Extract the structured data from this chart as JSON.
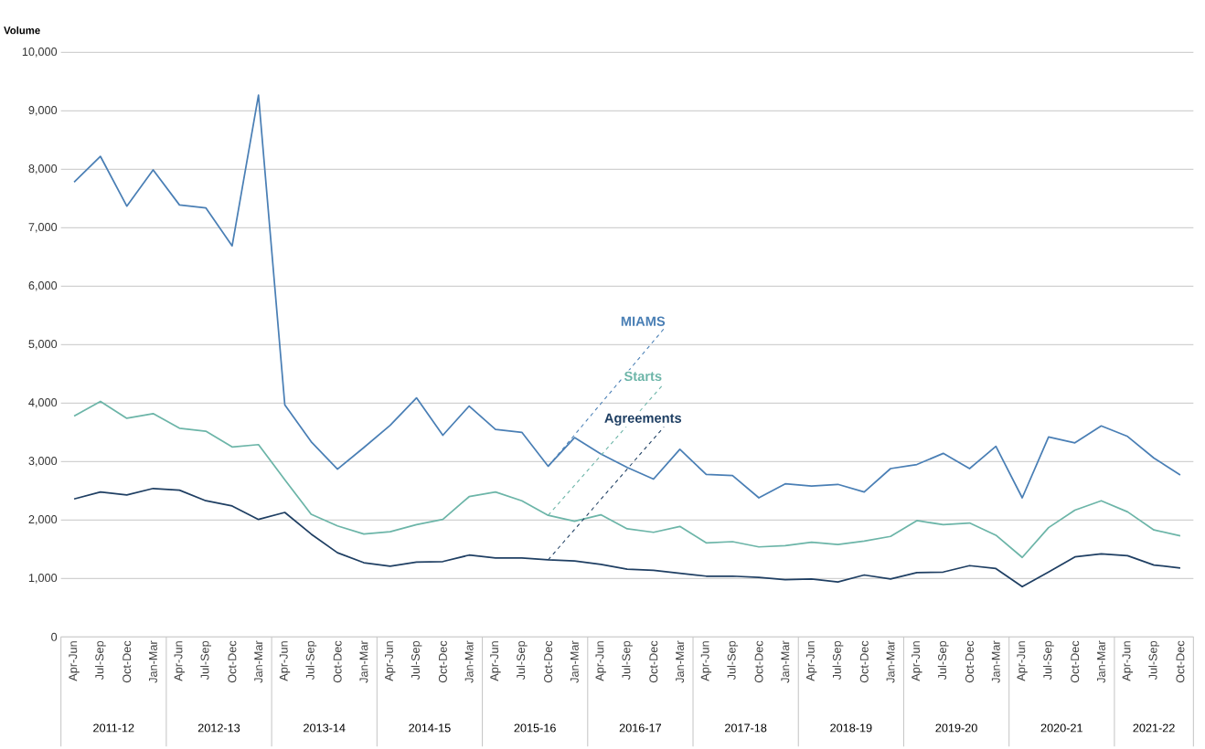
{
  "chart_data": {
    "type": "line",
    "ylabel": "Volume",
    "categories": [
      "Apr-Jun",
      "Jul-Sep",
      "Oct-Dec",
      "Jan-Mar",
      "Apr-Jun",
      "Jul-Sep",
      "Oct-Dec",
      "Jan-Mar",
      "Apr-Jun",
      "Jul-Sep",
      "Oct-Dec",
      "Jan-Mar",
      "Apr-Jun",
      "Jul-Sep",
      "Oct-Dec",
      "Jan-Mar",
      "Apr-Jun",
      "Jul-Sep",
      "Oct-Dec",
      "Jan-Mar",
      "Apr-Jun",
      "Jul-Sep",
      "Oct-Dec",
      "Jan-Mar",
      "Apr-Jun",
      "Jul-Sep",
      "Oct-Dec",
      "Jan-Mar",
      "Apr-Jun",
      "Jul-Sep",
      "Oct-Dec",
      "Jan-Mar",
      "Apr-Jun",
      "Jul-Sep",
      "Oct-Dec",
      "Jan-Mar",
      "Apr-Jun",
      "Jul-Sep",
      "Oct-Dec",
      "Jan-Mar",
      "Apr-Jun",
      "Jul-Sep",
      "Oct-Dec"
    ],
    "annotations": [
      "2011-12",
      "2012-13",
      "2013-14",
      "2014-15",
      "2015-16",
      "2016-17",
      "2017-18",
      "2018-19",
      "2019-20",
      "2020-21",
      "2021-22"
    ],
    "series": [
      {
        "name": "MIAMS",
        "color": "#4a7fb5",
        "values": [
          7780,
          8220,
          7370,
          7990,
          7390,
          7340,
          6690,
          9270,
          3970,
          3340,
          2870,
          3240,
          3620,
          4090,
          3450,
          3950,
          3550,
          3500,
          2920,
          3410,
          3130,
          2900,
          2700,
          3210,
          2780,
          2760,
          2380,
          2620,
          2580,
          2610,
          2480,
          2880,
          2950,
          3140,
          2880,
          3260,
          2380,
          3420,
          3320,
          3610,
          3430,
          3060,
          2770
        ]
      },
      {
        "name": "Starts",
        "color": "#6cb5a8",
        "values": [
          3780,
          4030,
          3740,
          3820,
          3570,
          3520,
          3250,
          3290,
          2690,
          2100,
          1900,
          1760,
          1800,
          1920,
          2010,
          2400,
          2480,
          2330,
          2080,
          1980,
          2090,
          1850,
          1790,
          1890,
          1610,
          1630,
          1540,
          1560,
          1620,
          1580,
          1640,
          1720,
          1990,
          1920,
          1950,
          1740,
          1360,
          1870,
          2170,
          2330,
          2140,
          1830,
          1730
        ]
      },
      {
        "name": "Agreements",
        "color": "#1f3f63",
        "values": [
          2360,
          2480,
          2430,
          2540,
          2510,
          2330,
          2240,
          2010,
          2130,
          1760,
          1440,
          1270,
          1210,
          1280,
          1290,
          1400,
          1350,
          1350,
          1320,
          1300,
          1240,
          1160,
          1140,
          1090,
          1040,
          1040,
          1020,
          980,
          990,
          940,
          1060,
          990,
          1100,
          1110,
          1220,
          1170,
          860,
          1110,
          1370,
          1420,
          1390,
          1230,
          1180
        ]
      }
    ],
    "ylim": [
      0,
      10000
    ],
    "yticks": [
      0,
      {
        "value": 1000,
        "label": "1,000"
      },
      {
        "value": 2000,
        "label": "2,000"
      },
      {
        "value": 3000,
        "label": "3,000"
      },
      {
        "value": 4000,
        "label": "4,000"
      },
      {
        "value": 5000,
        "label": "5,000"
      },
      {
        "value": 6000,
        "label": "6,000"
      },
      {
        "value": 7000,
        "label": "7,000"
      },
      {
        "value": 8000,
        "label": "8,000"
      },
      {
        "value": 9000,
        "label": "9,000"
      },
      {
        "value": 10000,
        "label": "10,000"
      }
    ],
    "grid": "y",
    "legend": false,
    "marker": "none",
    "line_style": "solid"
  }
}
